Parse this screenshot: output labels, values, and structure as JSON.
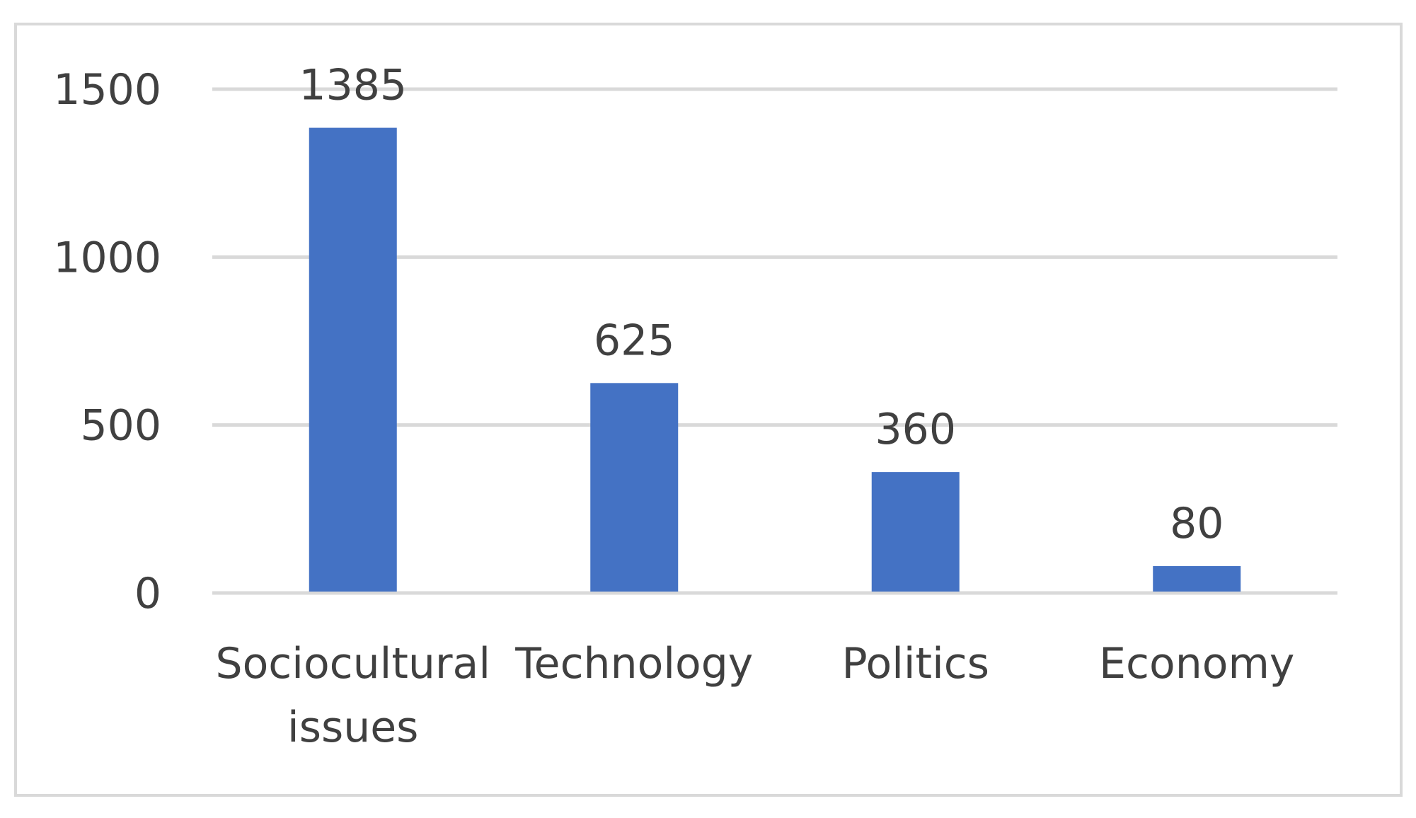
{
  "chart_data": {
    "type": "bar",
    "title": "",
    "xlabel": "",
    "ylabel": "",
    "categories": [
      [
        "Sociocultural",
        "issues"
      ],
      [
        "Technology"
      ],
      [
        "Politics"
      ],
      [
        "Economy"
      ]
    ],
    "values": [
      1385,
      625,
      360,
      80
    ],
    "data_labels": [
      "1385",
      "625",
      "360",
      "80"
    ],
    "ylim": [
      0,
      1500
    ],
    "yticks": [
      0,
      500,
      1000,
      1500
    ],
    "ytick_labels": [
      "0",
      "500",
      "1000",
      "1500"
    ],
    "grid": true,
    "legend": "none",
    "colors": {
      "bar": "#4472C4",
      "grid": "#D9D9D9",
      "text": "#404040",
      "frame": "#D9D9D9",
      "background": "#FFFFFF"
    }
  }
}
